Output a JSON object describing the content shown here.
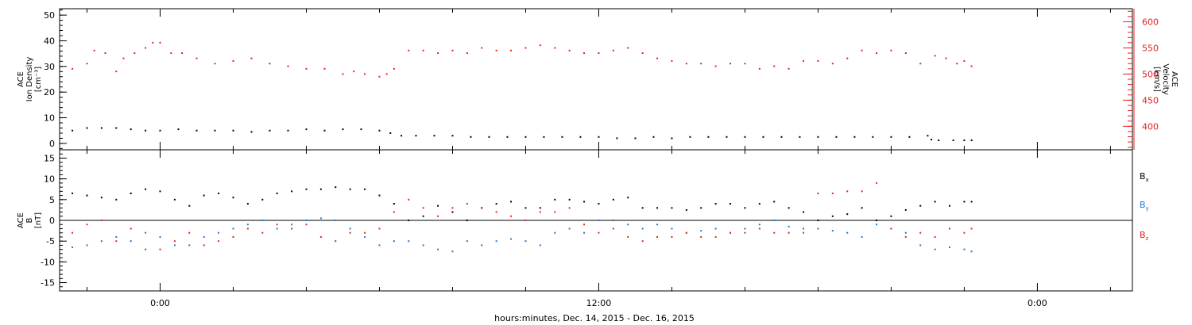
{
  "xlabel": "hours:minutes, Dec. 14, 2015 - Dec. 16, 2015",
  "x_tick_labels": [
    "0:00",
    "12:00",
    "0:00"
  ],
  "chart_data": [
    {
      "type": "scatter",
      "xlim": [
        -2.75,
        26.6
      ],
      "x_major_ticks": [
        0,
        12,
        24
      ],
      "left_axis": {
        "label_lines": [
          "ACE",
          "Ion Density",
          "[cm⁻³]"
        ],
        "ylim": [
          -2.5,
          52.5
        ],
        "ticks": [
          0,
          10,
          20,
          30,
          40,
          50
        ],
        "color": "#000000"
      },
      "right_axis": {
        "label_lines": [
          "ACE",
          "Velocity",
          "[km/s]"
        ],
        "ylim": [
          355,
          625
        ],
        "ticks": [
          400,
          450,
          500,
          550,
          600
        ],
        "color": "#e8201f"
      },
      "series": [
        {
          "axis": "right",
          "color": "#e8201f",
          "x": [
            -2.4,
            -2.0,
            -1.8,
            -1.5,
            -1.2,
            -1.0,
            -0.7,
            -0.4,
            -0.2,
            0.0,
            0.3,
            0.6,
            1.0,
            1.5,
            2.0,
            2.5,
            3.0,
            3.5,
            4.0,
            4.5,
            5.0,
            5.3,
            5.6,
            6.0,
            6.2,
            6.4,
            6.8,
            7.2,
            7.6,
            8.0,
            8.4,
            8.8,
            9.2,
            9.6,
            10.0,
            10.4,
            10.8,
            11.2,
            11.6,
            12.0,
            12.4,
            12.8,
            13.2,
            13.6,
            14.0,
            14.4,
            14.8,
            15.2,
            15.6,
            16.0,
            16.4,
            16.8,
            17.2,
            17.6,
            18.0,
            18.4,
            18.8,
            19.2,
            19.6,
            20.0,
            20.4,
            20.8,
            21.2,
            21.5,
            21.8,
            22.0,
            22.2
          ],
          "y": [
            510,
            520,
            545,
            540,
            505,
            530,
            540,
            550,
            560,
            560,
            540,
            540,
            530,
            520,
            525,
            530,
            520,
            515,
            510,
            510,
            500,
            505,
            500,
            495,
            500,
            510,
            545,
            545,
            540,
            545,
            540,
            550,
            545,
            545,
            550,
            555,
            550,
            545,
            540,
            540,
            545,
            550,
            540,
            530,
            525,
            520,
            520,
            515,
            520,
            520,
            510,
            515,
            510,
            525,
            525,
            520,
            530,
            545,
            540,
            545,
            540,
            520,
            535,
            530,
            520,
            525,
            515
          ]
        },
        {
          "axis": "left",
          "color": "#000000",
          "x": [
            -2.4,
            -2.0,
            -1.6,
            -1.2,
            -0.8,
            -0.4,
            0.0,
            0.5,
            1.0,
            1.5,
            2.0,
            2.5,
            3.0,
            3.5,
            4.0,
            4.5,
            5.0,
            5.5,
            6.0,
            6.3,
            6.6,
            7.0,
            7.5,
            8.0,
            8.5,
            9.0,
            9.5,
            10.0,
            10.5,
            11.0,
            11.5,
            12.0,
            12.5,
            13.0,
            13.5,
            14.0,
            14.5,
            15.0,
            15.5,
            16.0,
            16.5,
            17.0,
            17.5,
            18.0,
            18.5,
            19.0,
            19.5,
            20.0,
            20.5,
            21.0,
            21.1,
            21.3,
            21.7,
            22.0,
            22.2
          ],
          "y": [
            5,
            6,
            6,
            6,
            5.5,
            5,
            5,
            5.5,
            5,
            5,
            5,
            4.5,
            5,
            5,
            5.5,
            5,
            5.5,
            5.5,
            5,
            4,
            3,
            3,
            3,
            3,
            2.5,
            2.5,
            2.5,
            2.5,
            2.5,
            2.5,
            2.5,
            2.5,
            2,
            2,
            2.5,
            2,
            2.5,
            2.5,
            2.5,
            2.5,
            2.5,
            2.5,
            2.5,
            2.5,
            2.5,
            2.5,
            2.5,
            2.5,
            2.5,
            3,
            1.5,
            1.2,
            1.2,
            1.2,
            1.2
          ]
        }
      ]
    },
    {
      "type": "scatter",
      "xlim": [
        -2.75,
        26.6
      ],
      "x_major_ticks": [
        0,
        12,
        24
      ],
      "left_axis": {
        "label_lines": [
          "ACE",
          "B",
          "[nT]"
        ],
        "ylim": [
          -17,
          17
        ],
        "ticks": [
          -15,
          -10,
          -5,
          0,
          5,
          10,
          15
        ],
        "color": "#000000"
      },
      "zero_line": true,
      "legend_position": "right",
      "series": [
        {
          "name": "B",
          "subscript": "x",
          "color": "#000000",
          "x": [
            -2.4,
            -2.0,
            -1.6,
            -1.2,
            -0.8,
            -0.4,
            0.0,
            0.4,
            0.8,
            1.2,
            1.6,
            2.0,
            2.4,
            2.8,
            3.2,
            3.6,
            4.0,
            4.4,
            4.8,
            5.2,
            5.6,
            6.0,
            6.4,
            6.8,
            7.2,
            7.6,
            8.0,
            8.4,
            8.8,
            9.2,
            9.6,
            10.0,
            10.4,
            10.8,
            11.2,
            11.6,
            12.0,
            12.4,
            12.8,
            13.2,
            13.6,
            14.0,
            14.4,
            14.8,
            15.2,
            15.6,
            16.0,
            16.4,
            16.8,
            17.2,
            17.6,
            18.0,
            18.4,
            18.8,
            19.2,
            19.6,
            20.0,
            20.4,
            20.8,
            21.2,
            21.6,
            22.0,
            22.2
          ],
          "y": [
            6.5,
            6,
            5.5,
            5,
            6.5,
            7.5,
            7,
            5,
            3.5,
            6,
            6.5,
            5.5,
            4,
            5,
            6.5,
            7,
            7.5,
            7.5,
            8,
            7.5,
            7.5,
            6,
            4,
            0,
            1,
            3.5,
            2,
            0,
            3,
            4,
            4.5,
            3,
            3,
            5,
            5,
            4.5,
            4,
            5,
            5.5,
            3,
            3,
            3,
            2.5,
            3,
            4,
            4,
            3,
            4,
            4.5,
            3,
            2,
            0,
            1,
            1.5,
            3,
            0,
            1,
            2.5,
            3.5,
            4.5,
            3.5,
            4.5,
            4.5
          ]
        },
        {
          "name": "B",
          "subscript": "y",
          "color": "#1f77cf",
          "x": [
            -2.4,
            -2.0,
            -1.6,
            -1.2,
            -0.8,
            -0.4,
            0.0,
            0.4,
            0.8,
            1.2,
            1.6,
            2.0,
            2.4,
            2.8,
            3.2,
            3.6,
            4.0,
            4.4,
            4.8,
            5.2,
            5.6,
            6.0,
            6.4,
            6.8,
            7.2,
            7.6,
            8.0,
            8.4,
            8.8,
            9.2,
            9.6,
            10.0,
            10.4,
            10.8,
            11.2,
            11.6,
            12.0,
            12.4,
            12.8,
            13.2,
            13.6,
            14.0,
            14.4,
            14.8,
            15.2,
            15.6,
            16.0,
            16.4,
            16.8,
            17.2,
            17.6,
            18.0,
            18.4,
            18.8,
            19.2,
            19.6,
            20.0,
            20.4,
            20.8,
            21.2,
            21.6,
            22.0,
            22.2
          ],
          "y": [
            -6.5,
            -6,
            -5,
            -4,
            -5,
            -3,
            -4,
            -6,
            -6,
            -4,
            -3,
            -2,
            -1,
            0,
            -2,
            -1,
            0,
            0.5,
            0,
            -2,
            -4,
            -6,
            -5,
            -5,
            -6,
            -7,
            -7.5,
            -5,
            -6,
            -5,
            -4.5,
            -5,
            -6,
            -3,
            -2,
            -3,
            0,
            0,
            -1,
            -2,
            -1,
            -2,
            -3,
            -2.5,
            -2,
            -3,
            -2,
            -1,
            0,
            -1.5,
            -3,
            -2,
            -2.5,
            -3,
            -4,
            -1,
            -2,
            -3,
            -6,
            -7,
            -6.5,
            -7,
            -7.5
          ]
        },
        {
          "name": "B",
          "subscript": "z",
          "color": "#e8201f",
          "x": [
            -2.4,
            -2.0,
            -1.6,
            -1.2,
            -0.8,
            -0.4,
            0.0,
            0.4,
            0.8,
            1.2,
            1.6,
            2.0,
            2.4,
            2.8,
            3.2,
            3.6,
            4.0,
            4.4,
            4.8,
            5.2,
            5.6,
            6.0,
            6.4,
            6.8,
            7.2,
            7.6,
            8.0,
            8.4,
            8.8,
            9.2,
            9.6,
            10.0,
            10.4,
            10.8,
            11.2,
            11.6,
            12.0,
            12.4,
            12.8,
            13.2,
            13.6,
            14.0,
            14.4,
            14.8,
            15.2,
            15.6,
            16.0,
            16.4,
            16.8,
            17.2,
            17.6,
            18.0,
            18.4,
            18.8,
            19.2,
            19.6,
            20.0,
            20.4,
            20.8,
            21.2,
            21.6,
            22.0,
            22.2
          ],
          "y": [
            -3,
            -1,
            0,
            -5,
            -2,
            -7,
            -7,
            -5,
            -3,
            -6,
            -5,
            -4,
            -2,
            -3,
            -1,
            -2,
            -1,
            -4,
            -5,
            -3,
            -3,
            -2,
            2,
            5,
            3,
            1,
            3,
            4,
            3,
            2,
            1,
            0,
            2,
            2,
            3,
            -1,
            -3,
            -2,
            -4,
            -5,
            -4,
            -4,
            -3,
            -4,
            -4,
            -3,
            -3,
            -2,
            -3,
            -3,
            -2,
            6.5,
            6.5,
            7,
            7,
            9,
            -2,
            -4,
            -3,
            -4,
            -2,
            -3,
            -2
          ]
        }
      ]
    }
  ]
}
